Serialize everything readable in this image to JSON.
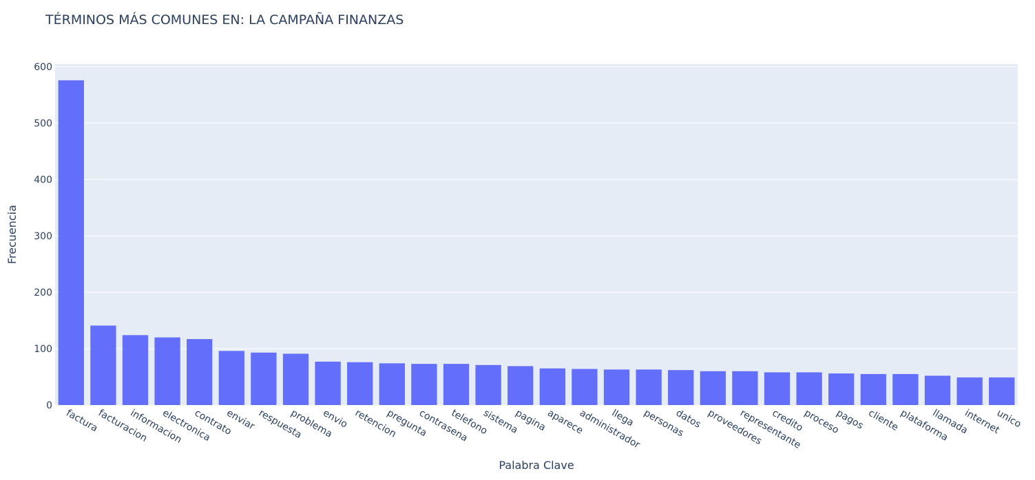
{
  "chart_data": {
    "type": "bar",
    "title": "TÉRMINOS MÁS COMUNES EN: LA CAMPAÑA FINANZAS",
    "xlabel": "Palabra Clave",
    "ylabel": "Frecuencia",
    "ylim": [
      0,
      605
    ],
    "yticks": [
      0,
      100,
      200,
      300,
      400,
      500,
      600
    ],
    "grid": true,
    "bar_color": "#636efa",
    "plot_bg": "#e5ecf6",
    "text_color": "#2a3f5f",
    "categories": [
      "factura",
      "facturacion",
      "informacion",
      "electronica",
      "contrato",
      "enviar",
      "respuesta",
      "problema",
      "envio",
      "retencion",
      "pregunta",
      "contrasena",
      "telefono",
      "sistema",
      "pagina",
      "aparece",
      "administrador",
      "llega",
      "personas",
      "datos",
      "proveedores",
      "representante",
      "credito",
      "proceso",
      "pagos",
      "cliente",
      "plataforma",
      "llamada",
      "internet",
      "unico"
    ],
    "values": [
      576,
      141,
      124,
      120,
      117,
      96,
      93,
      91,
      77,
      76,
      74,
      73,
      73,
      71,
      69,
      65,
      64,
      63,
      63,
      62,
      60,
      60,
      58,
      58,
      56,
      55,
      55,
      52,
      49,
      49
    ]
  }
}
